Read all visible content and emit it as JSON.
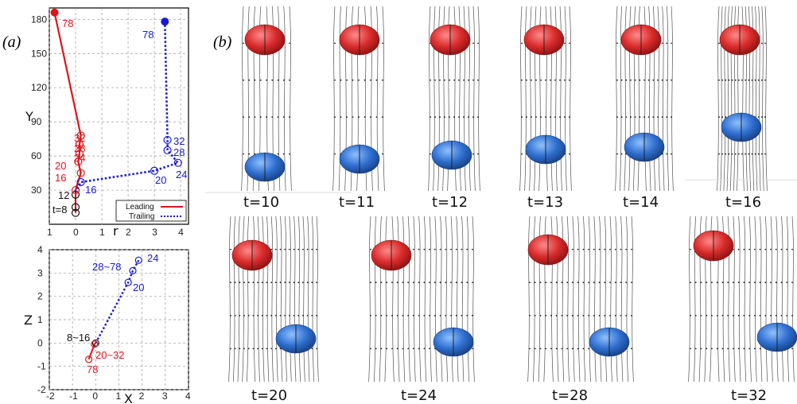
{
  "panel_a_label": "(a)",
  "panel_b_label": "(b)",
  "chart_data": [
    {
      "type": "line",
      "xlabel": "r",
      "ylabel": "Y",
      "xticks": [
        "1",
        "0",
        "1",
        "2",
        "3",
        "4"
      ],
      "yticks": [
        "30",
        "60",
        "90",
        "120",
        "150",
        "180"
      ],
      "xlim": [
        -1,
        4.3
      ],
      "ylim": [
        0,
        190
      ],
      "legend": [
        "Leading",
        "Trailing"
      ],
      "series": [
        {
          "name": "Leading",
          "color": "#e0141b",
          "style": "solid",
          "points": [
            [
              0,
              10
            ],
            [
              0,
              15
            ],
            [
              0,
              26
            ],
            [
              0,
              30
            ],
            [
              0.2,
              45
            ],
            [
              0.1,
              55
            ],
            [
              0.15,
              62
            ],
            [
              0.15,
              70
            ],
            [
              0.2,
              78
            ],
            [
              -0.8,
              186
            ]
          ]
        },
        {
          "name": "Trailing",
          "color": "#1a1ad6",
          "style": "dotted",
          "points": [
            [
              0,
              28
            ],
            [
              0.2,
              37
            ],
            [
              3,
              47
            ],
            [
              3.9,
              54
            ],
            [
              3.5,
              65
            ],
            [
              3.5,
              74
            ],
            [
              3.4,
              178
            ]
          ]
        }
      ],
      "annotations": [
        {
          "text": "78",
          "series": "Leading"
        },
        {
          "text": "32",
          "series": "Leading"
        },
        {
          "text": "28",
          "series": "Leading"
        },
        {
          "text": "24",
          "series": "Leading"
        },
        {
          "text": "20",
          "series": "Leading"
        },
        {
          "text": "16",
          "series": "Leading"
        },
        {
          "text": "12",
          "series": "both"
        },
        {
          "text": "t=8",
          "series": "both"
        },
        {
          "text": "78",
          "series": "Trailing"
        },
        {
          "text": "32",
          "series": "Trailing"
        },
        {
          "text": "28",
          "series": "Trailing"
        },
        {
          "text": "24",
          "series": "Trailing"
        },
        {
          "text": "20",
          "series": "Trailing"
        },
        {
          "text": "16",
          "series": "Trailing"
        }
      ]
    },
    {
      "type": "line",
      "xlabel": "X",
      "ylabel": "Z",
      "xticks": [
        "-2",
        "-1",
        "0",
        "1",
        "2",
        "3",
        "4"
      ],
      "yticks": [
        "-2",
        "-1",
        "0",
        "1",
        "2",
        "3",
        "4"
      ],
      "xlim": [
        -2,
        4
      ],
      "ylim": [
        -2,
        4
      ],
      "series": [
        {
          "name": "Leading",
          "color": "#e0141b",
          "style": "solid",
          "points": [
            [
              0,
              0
            ],
            [
              -0.05,
              -0.05
            ],
            [
              -0.3,
              -0.7
            ]
          ]
        },
        {
          "name": "Trailing",
          "color": "#1a1ad6",
          "style": "dotted",
          "points": [
            [
              0,
              0
            ],
            [
              1.4,
              2.6
            ],
            [
              1.6,
              3.1
            ],
            [
              1.85,
              3.55
            ]
          ]
        }
      ],
      "annotations": [
        {
          "text": "24",
          "series": "Trailing"
        },
        {
          "text": "28~78",
          "series": "Trailing"
        },
        {
          "text": "20",
          "series": "Trailing"
        },
        {
          "text": "8~16",
          "series": "both"
        },
        {
          "text": "20~32",
          "series": "Leading"
        },
        {
          "text": "78",
          "series": "Leading"
        }
      ]
    }
  ],
  "frames": [
    {
      "label": "t=10"
    },
    {
      "label": "t=11"
    },
    {
      "label": "t=12"
    },
    {
      "label": "t=13"
    },
    {
      "label": "t=14"
    },
    {
      "label": "t=16"
    },
    {
      "label": "t=20"
    },
    {
      "label": "t=24"
    },
    {
      "label": "t=28"
    },
    {
      "label": "t=32"
    }
  ]
}
